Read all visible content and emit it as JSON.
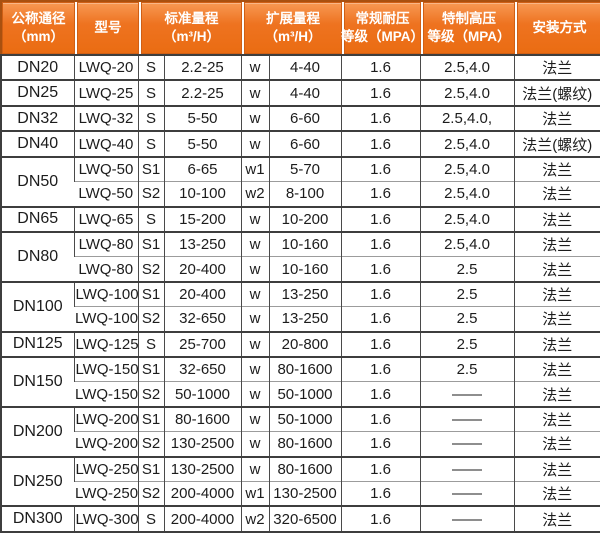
{
  "colors": {
    "header_bg": "#ee7320",
    "header_bg_light": "#f89a55",
    "header_cell_border": "#cf5f15",
    "header_frame": "#a9500f",
    "header_text": "#ffffff",
    "body_text": "#1c1c1c",
    "grid_dark": "#3e3e3e",
    "grid_mid": "#4a4a4a",
    "grid_light": "#9c9c9c",
    "body_bg": "#ffffff"
  },
  "table": {
    "headers": [
      {
        "name": "nominal-diameter",
        "lines": [
          "公称通径",
          "（mm）"
        ]
      },
      {
        "name": "model",
        "lines": [
          "型号"
        ]
      },
      {
        "name": "standard-range",
        "lines": [
          "标准量程",
          "（m³/H）"
        ]
      },
      {
        "name": "extended-range",
        "lines": [
          "扩展量程",
          "（m³/H）"
        ]
      },
      {
        "name": "regular-pressure",
        "lines": [
          "常规耐压",
          "等级（MPA）"
        ]
      },
      {
        "name": "special-pressure",
        "lines": [
          "特制高压",
          "等级（MPA）"
        ]
      },
      {
        "name": "installation",
        "lines": [
          "安装方式"
        ]
      }
    ],
    "groups": [
      {
        "dn": "DN20",
        "rows": [
          [
            "LWQ-20",
            "S",
            "2.2-25",
            "w",
            "4-40",
            "1.6",
            "2.5,4.0",
            "法兰"
          ]
        ]
      },
      {
        "dn": "DN25",
        "rows": [
          [
            "LWQ-25",
            "S",
            "2.2-25",
            "w",
            "4-40",
            "1.6",
            "2.5,4.0",
            "法兰(螺纹)"
          ]
        ]
      },
      {
        "dn": "DN32",
        "rows": [
          [
            "LWQ-32",
            "S",
            "5-50",
            "w",
            "6-60",
            "1.6",
            "2.5,4.0,",
            "法兰"
          ]
        ]
      },
      {
        "dn": "DN40",
        "rows": [
          [
            "LWQ-40",
            "S",
            "5-50",
            "w",
            "6-60",
            "1.6",
            "2.5,4.0",
            "法兰(螺纹)"
          ]
        ]
      },
      {
        "dn": "DN50",
        "rows": [
          [
            "LWQ-50",
            "S1",
            "6-65",
            "w1",
            "5-70",
            "1.6",
            "2.5,4.0",
            "法兰"
          ],
          [
            "LWQ-50",
            "S2",
            "10-100",
            "w2",
            "8-100",
            "1.6",
            "2.5,4.0",
            "法兰"
          ]
        ]
      },
      {
        "dn": "DN65",
        "rows": [
          [
            "LWQ-65",
            "S",
            "15-200",
            "w",
            "10-200",
            "1.6",
            "2.5,4.0",
            "法兰"
          ]
        ]
      },
      {
        "dn": "DN80",
        "rows": [
          [
            "LWQ-80",
            "S1",
            "13-250",
            "w",
            "10-160",
            "1.6",
            "2.5,4.0",
            "法兰"
          ],
          [
            "LWQ-80",
            "S2",
            "20-400",
            "w",
            "10-160",
            "1.6",
            "2.5",
            "法兰"
          ]
        ]
      },
      {
        "dn": "DN100",
        "rows": [
          [
            "LWQ-100",
            "S1",
            "20-400",
            "w",
            "13-250",
            "1.6",
            "2.5",
            "法兰"
          ],
          [
            "LWQ-100",
            "S2",
            "32-650",
            "w",
            "13-250",
            "1.6",
            "2.5",
            "法兰"
          ]
        ]
      },
      {
        "dn": "DN125",
        "rows": [
          [
            "LWQ-125",
            "S",
            "25-700",
            "w",
            "20-800",
            "1.6",
            "2.5",
            "法兰"
          ]
        ]
      },
      {
        "dn": "DN150",
        "rows": [
          [
            "LWQ-150",
            "S1",
            "32-650",
            "w",
            "80-1600",
            "1.6",
            "2.5",
            "法兰"
          ],
          [
            "LWQ-150",
            "S2",
            "50-1000",
            "w",
            "50-1000",
            "1.6",
            "——",
            "法兰"
          ]
        ]
      },
      {
        "dn": "DN200",
        "rows": [
          [
            "LWQ-200",
            "S1",
            "80-1600",
            "w",
            "50-1000",
            "1.6",
            "——",
            "法兰"
          ],
          [
            "LWQ-200",
            "S2",
            "130-2500",
            "w",
            "80-1600",
            "1.6",
            "——",
            "法兰"
          ]
        ]
      },
      {
        "dn": "DN250",
        "rows": [
          [
            "LWQ-250",
            "S1",
            "130-2500",
            "w",
            "80-1600",
            "1.6",
            "——",
            "法兰"
          ],
          [
            "LWQ-250",
            "S2",
            "200-4000",
            "w1",
            "130-2500",
            "1.6",
            "——",
            "法兰"
          ]
        ]
      },
      {
        "dn": "DN300",
        "rows": [
          [
            "LWQ-300",
            "S",
            "200-4000",
            "w2",
            "320-6500",
            "1.6",
            "——",
            "法兰"
          ]
        ]
      }
    ],
    "column_names": [
      "model-cell",
      "s-code-cell",
      "standard-range-cell",
      "w-code-cell",
      "extended-range-cell",
      "regular-pressure-cell",
      "special-pressure-cell",
      "installation-cell"
    ]
  }
}
